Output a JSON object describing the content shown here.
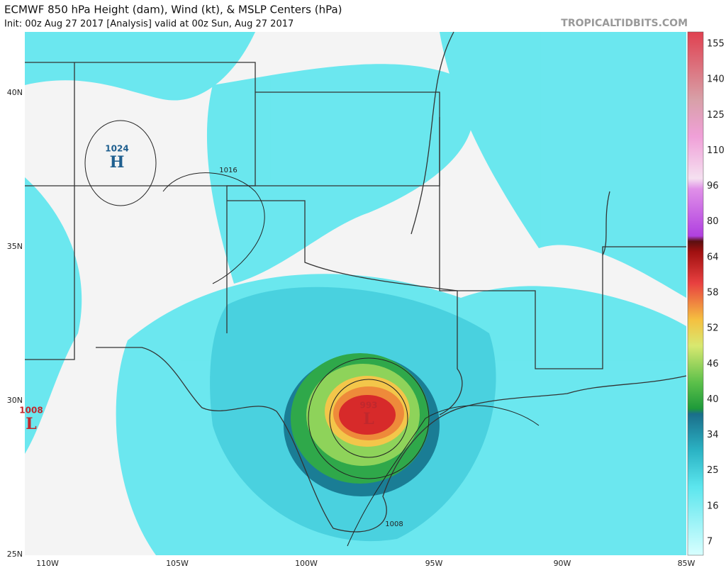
{
  "header": {
    "title": "ECMWF 850 hPa Height (dam), Wind (kt), & MSLP Centers (hPa)",
    "subtitle": "Init: 00z Aug 27 2017   [Analysis]   valid at 00z Sun, Aug 27 2017",
    "watermark": "TROPICALTIDBITS.COM"
  },
  "axes": {
    "lat_labels": [
      "40N",
      "35N",
      "30N",
      "25N"
    ],
    "lon_labels": [
      "110W",
      "105W",
      "100W",
      "95W",
      "90W",
      "85W"
    ]
  },
  "colorbar": {
    "ticks": [
      155,
      140,
      125,
      110,
      96,
      80,
      64,
      58,
      52,
      46,
      40,
      34,
      25,
      16,
      7
    ]
  },
  "centers": [
    {
      "pressure": "1024",
      "letter": "H"
    },
    {
      "pressure": "1008",
      "letter": "L"
    },
    {
      "pressure": "993",
      "letter": "L"
    }
  ],
  "contour_labels": [
    "1016",
    "1008"
  ]
}
